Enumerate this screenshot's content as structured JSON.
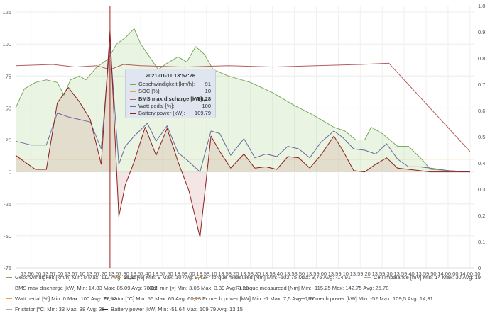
{
  "chart_data": {
    "type": "line",
    "x_labels": [
      "13:56:50",
      "13:57:00",
      "13:57:10",
      "13:57:20",
      "13:57:30",
      "13:57:40",
      "13:57:50",
      "13:58:00",
      "13:58:10",
      "13:58:20",
      "13:58:30",
      "13:58:40",
      "13:58:50",
      "13:59:00",
      "13:59:10",
      "13:59:20",
      "13:59:30",
      "13:59:40",
      "13:59:50",
      "14:00:00",
      "14:00:10"
    ],
    "x_start": "13:56:43",
    "x_end": "14:00:12",
    "y_left": {
      "ticks": [
        "-75",
        "-50",
        "-25",
        "0",
        "25",
        "50",
        "75",
        "100",
        "125"
      ],
      "min": -75,
      "max": 130
    },
    "y_right": {
      "ticks": [
        "0",
        "0.1",
        "0.2",
        "0.3",
        "0.4",
        "0.5",
        "0.6",
        "0.7",
        "0.8",
        "0.9",
        "1.0"
      ],
      "min": 0,
      "max": 1.0
    },
    "series": [
      {
        "name": "Geschwindigkeit [km/h]",
        "color": "#7aa85c",
        "fill": "rgba(170,210,140,0.25)",
        "axis": "left",
        "points": [
          [
            "13:56:43",
            50
          ],
          [
            "13:56:47",
            65
          ],
          [
            "13:56:52",
            70
          ],
          [
            "13:56:57",
            72
          ],
          [
            "13:57:02",
            70
          ],
          [
            "13:57:05",
            60
          ],
          [
            "13:57:08",
            72
          ],
          [
            "13:57:12",
            75
          ],
          [
            "13:57:15",
            72
          ],
          [
            "13:57:20",
            82
          ],
          [
            "13:57:25",
            88
          ],
          [
            "13:57:29",
            100
          ],
          [
            "13:57:33",
            105
          ],
          [
            "13:57:37",
            112
          ],
          [
            "13:57:40",
            100
          ],
          [
            "13:57:44",
            90
          ],
          [
            "13:57:48",
            80
          ],
          [
            "13:57:52",
            85
          ],
          [
            "13:57:57",
            90
          ],
          [
            "13:58:01",
            86
          ],
          [
            "13:58:05",
            98
          ],
          [
            "13:58:09",
            92
          ],
          [
            "13:58:13",
            80
          ],
          [
            "13:58:20",
            75
          ],
          [
            "13:58:30",
            70
          ],
          [
            "13:58:40",
            62
          ],
          [
            "13:58:50",
            52
          ],
          [
            "13:58:58",
            45
          ],
          [
            "13:59:03",
            40
          ],
          [
            "13:59:08",
            35
          ],
          [
            "13:59:13",
            32
          ],
          [
            "13:59:18",
            25
          ],
          [
            "13:59:22",
            25
          ],
          [
            "13:59:25",
            35
          ],
          [
            "13:59:30",
            30
          ],
          [
            "13:59:37",
            20
          ],
          [
            "13:59:42",
            20
          ],
          [
            "13:59:45",
            15
          ],
          [
            "13:59:48",
            10
          ],
          [
            "13:59:52",
            2
          ],
          [
            "14:00:00",
            1
          ],
          [
            "14:00:10",
            0
          ]
        ]
      },
      {
        "name": "SOC [%]",
        "color": "#e3a43c",
        "axis": "left",
        "points": [
          [
            "13:56:43",
            10
          ],
          [
            "14:00:12",
            10
          ]
        ]
      },
      {
        "name": "BMS max discharge [kW]",
        "color": "#b85c5c",
        "axis": "left",
        "points": [
          [
            "13:56:43",
            83
          ],
          [
            "13:57:00",
            84
          ],
          [
            "13:57:10",
            82
          ],
          [
            "13:57:20",
            83
          ],
          [
            "13:57:26",
            80
          ],
          [
            "13:57:32",
            84
          ],
          [
            "13:57:40",
            83
          ],
          [
            "13:58:00",
            82
          ],
          [
            "13:58:20",
            83
          ],
          [
            "13:58:40",
            82
          ],
          [
            "13:59:00",
            83
          ],
          [
            "13:59:20",
            84
          ],
          [
            "13:59:33",
            85
          ],
          [
            "14:00:10",
            16
          ]
        ]
      },
      {
        "name": "Watt pedal [%]",
        "color": "#6b6a9e",
        "axis": "left",
        "points": [
          [
            "13:56:43",
            24
          ],
          [
            "13:56:50",
            21
          ],
          [
            "13:56:57",
            21
          ],
          [
            "13:57:02",
            46
          ],
          [
            "13:57:07",
            43
          ],
          [
            "13:57:12",
            41
          ],
          [
            "13:57:17",
            39
          ],
          [
            "13:57:22",
            18
          ],
          [
            "13:57:26",
            100
          ],
          [
            "13:57:30",
            6
          ],
          [
            "13:57:33",
            20
          ],
          [
            "13:57:37",
            28
          ],
          [
            "13:57:43",
            38
          ],
          [
            "13:57:47",
            24
          ],
          [
            "13:57:52",
            36
          ],
          [
            "13:57:57",
            15
          ],
          [
            "13:58:02",
            8
          ],
          [
            "13:58:07",
            0
          ],
          [
            "13:58:12",
            32
          ],
          [
            "13:58:16",
            30
          ],
          [
            "13:58:21",
            13
          ],
          [
            "13:58:27",
            26
          ],
          [
            "13:58:32",
            11
          ],
          [
            "13:58:37",
            14
          ],
          [
            "13:58:42",
            12
          ],
          [
            "13:58:47",
            20
          ],
          [
            "13:58:52",
            18
          ],
          [
            "13:58:57",
            11
          ],
          [
            "13:59:02",
            23
          ],
          [
            "13:59:08",
            32
          ],
          [
            "13:59:12",
            27
          ],
          [
            "13:59:17",
            18
          ],
          [
            "13:59:22",
            17
          ],
          [
            "13:59:27",
            14
          ],
          [
            "13:59:32",
            22
          ],
          [
            "13:59:37",
            10
          ],
          [
            "13:59:42",
            4
          ],
          [
            "13:59:47",
            4
          ],
          [
            "13:59:52",
            3
          ],
          [
            "14:00:00",
            1
          ],
          [
            "14:00:10",
            0
          ]
        ]
      },
      {
        "name": "Battery power [kW]",
        "color": "#8c2020",
        "fill": "rgba(200,140,130,0.22)",
        "axis": "left",
        "points": [
          [
            "13:56:43",
            13
          ],
          [
            "13:56:47",
            8
          ],
          [
            "13:56:52",
            2
          ],
          [
            "13:56:57",
            2
          ],
          [
            "13:57:02",
            54
          ],
          [
            "13:57:07",
            66
          ],
          [
            "13:57:12",
            55
          ],
          [
            "13:57:17",
            41
          ],
          [
            "13:57:22",
            6
          ],
          [
            "13:57:26",
            110
          ],
          [
            "13:57:30",
            -35
          ],
          [
            "13:57:33",
            -10
          ],
          [
            "13:57:37",
            8
          ],
          [
            "13:57:42",
            35
          ],
          [
            "13:57:47",
            13
          ],
          [
            "13:57:52",
            34
          ],
          [
            "13:57:57",
            8
          ],
          [
            "13:58:02",
            -15
          ],
          [
            "13:58:07",
            -51
          ],
          [
            "13:58:12",
            28
          ],
          [
            "13:58:16",
            16
          ],
          [
            "13:58:21",
            3
          ],
          [
            "13:58:27",
            14
          ],
          [
            "13:58:32",
            3
          ],
          [
            "13:58:37",
            4
          ],
          [
            "13:58:42",
            2
          ],
          [
            "13:58:47",
            12
          ],
          [
            "13:58:52",
            11
          ],
          [
            "13:58:57",
            3
          ],
          [
            "13:59:02",
            13
          ],
          [
            "13:59:08",
            28
          ],
          [
            "13:59:12",
            17
          ],
          [
            "13:59:17",
            1
          ],
          [
            "13:59:22",
            0
          ],
          [
            "13:59:27",
            6
          ],
          [
            "13:59:32",
            11
          ],
          [
            "13:59:37",
            3
          ],
          [
            "13:59:42",
            2
          ],
          [
            "13:59:47",
            1
          ],
          [
            "13:59:52",
            0
          ],
          [
            "14:00:00",
            0
          ],
          [
            "14:00:10",
            0
          ]
        ]
      }
    ],
    "cursor_time": "13:57:26"
  },
  "tooltip": {
    "title": "2021-01-11 13:57:26",
    "rows": [
      {
        "label": "Geschwindigkeit [km/h]:",
        "value": "91",
        "color": "#7aa85c",
        "bold": false
      },
      {
        "label": "SOC [%]:",
        "value": "10",
        "color": "#e3a43c",
        "bold": false
      },
      {
        "label": "BMS max discharge [kW]:",
        "value": "80,28",
        "color": "#b85c5c",
        "bold": true
      },
      {
        "label": "Watt pedal [%]:",
        "value": "100",
        "color": "#6b6a9e",
        "bold": false
      },
      {
        "label": "Battery power [kW]:",
        "value": "109,79",
        "color": "#8c2020",
        "bold": false
      }
    ]
  },
  "legend": [
    [
      {
        "text": "Geschwindigkeit [km/h]  Min: 0  Max: 112  Avg: 55,35",
        "color": "#7aa85c"
      },
      {
        "text": "SOC [%]  Min: 9  Max: 10  Avg: 9,43",
        "color": "#e3a43c"
      },
      {
        "text": "Fr torque measured [Nm]  Min: -102,75  Max: 3,75  Avg: -14,91",
        "color": "#d4a04c"
      },
      {
        "text": "Cell imbalance [mV]  Min: 14  Max: 30  Avg: 19",
        "color": "#9ab87a"
      }
    ],
    [
      {
        "text": "BMS max discharge [kW]  Min: 14,83  Max: 85,09  Avg: 78,82",
        "color": "#b85c5c"
      },
      {
        "text": "Cell min [v]  Min: 3,06  Max: 3,39  Avg: 3,26",
        "color": "#8fa8c8"
      },
      {
        "text": "Rr torque measuredd [Nm]  Min: -115,25  Max: 142,75  Avg: 25,78",
        "color": "#a0a0a0"
      }
    ],
    [
      {
        "text": "Watt pedal [%]  Min: 0  Max: 100  Avg: 22,52",
        "color": "#e3a43c"
      },
      {
        "text": "Fr stator [°C]  Min: 56  Max: 65  Avg: 60,23",
        "color": "#b0b0b0"
      },
      {
        "text": "Fr mech power [kW]  Min: -1  Max: 7,5  Avg: 0,77",
        "color": "#d48a4c"
      },
      {
        "text": "Rr mech power [kW]  Min: -52  Max: 109,5  Avg: 14,31",
        "color": "#8c8c8c"
      }
    ],
    [
      {
        "text": "Fr stator [°C]  Min: 33  Max: 38  Avg: 36",
        "color": "#a8a8a8"
      },
      {
        "text": "Battery power [kW]  Min: -51,64  Max: 109,79  Avg: 13,15",
        "color": "#222222"
      }
    ]
  ]
}
